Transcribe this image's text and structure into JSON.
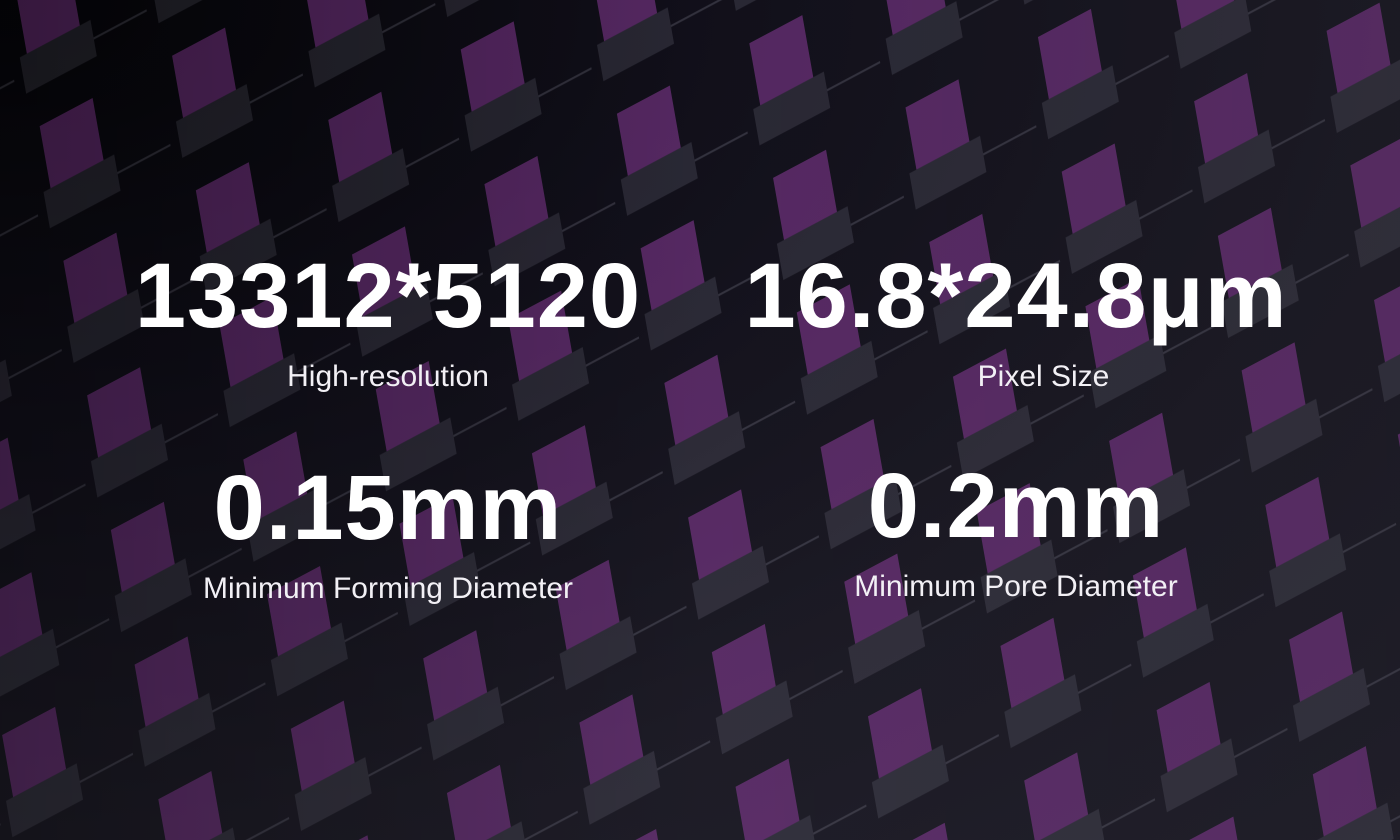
{
  "stats": [
    {
      "value": "13312*5120",
      "label": "High-resolution"
    },
    {
      "value": "16.8*24.8μm",
      "label": "Pixel Size"
    },
    {
      "value": "0.15mm",
      "label": "Minimum Forming Diameter"
    },
    {
      "value": "0.2mm",
      "label": "Minimum Pore Diameter"
    }
  ],
  "colors": {
    "background": "#1a1826",
    "accent_glow": "#be50d2",
    "text": "#ffffff"
  }
}
